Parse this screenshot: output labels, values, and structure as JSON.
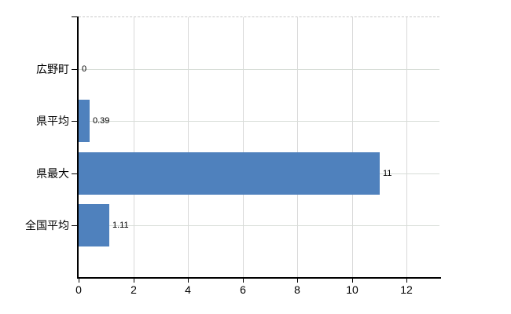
{
  "chart_data": {
    "type": "bar",
    "orientation": "horizontal",
    "title": "",
    "categories": [
      "広野町",
      "県平均",
      "県最大",
      "全国平均"
    ],
    "values": [
      0,
      0.39,
      11,
      1.11
    ],
    "value_labels": [
      "0",
      "0.39",
      "11",
      "1.11"
    ],
    "x_ticks": [
      "0",
      "2",
      "4",
      "6",
      "8",
      "10",
      "12"
    ],
    "x_tick_values": [
      0,
      2,
      4,
      6,
      8,
      10,
      12
    ],
    "xlim": [
      0,
      13.2
    ],
    "grid": true,
    "legend": false,
    "bar_color": "#4f81bd",
    "gridline_color": "#d9d9d9",
    "top_border_color": "#c9c9c9",
    "axis_color": "#000000",
    "text_color": "#000000"
  }
}
